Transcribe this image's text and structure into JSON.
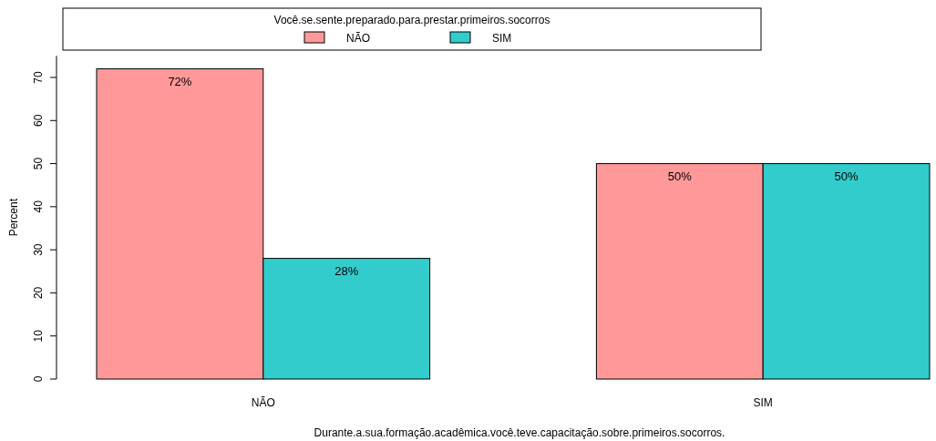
{
  "chart_data": {
    "type": "bar",
    "legend_title": "Você.se.sente.preparado.para.prestar.primeiros.socorros",
    "xlabel": "Durante.a.sua.formação.acadêmica.você.teve.capacitação.sobre.primeiros.socorros.",
    "ylabel": "Percent",
    "categories": [
      "NÃO",
      "SIM"
    ],
    "series": [
      {
        "name": "NÃO",
        "color": "#ff9999",
        "values": [
          72,
          50
        ],
        "value_labels": [
          "72%",
          "50%"
        ]
      },
      {
        "name": "SIM",
        "color": "#33cccc",
        "values": [
          28,
          50
        ],
        "value_labels": [
          "28%",
          "50%"
        ]
      }
    ],
    "ylim": [
      0,
      75
    ],
    "yticks": [
      0,
      10,
      20,
      30,
      40,
      50,
      60,
      70
    ],
    "grid": false,
    "legend": "top"
  }
}
